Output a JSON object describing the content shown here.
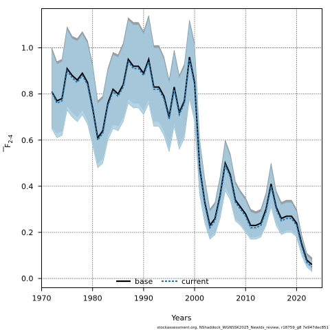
{
  "chart_data": {
    "type": "line",
    "xlabel": "Years",
    "ylabel": "F2-4",
    "xlim": [
      1970,
      2025
    ],
    "ylim": [
      -0.04,
      1.17
    ],
    "grid": true,
    "legend_position": "bottom",
    "x_ticks": [
      1970,
      1980,
      1990,
      2000,
      2010,
      2020
    ],
    "y_ticks": [
      0.0,
      0.2,
      0.4,
      0.6,
      0.8,
      1.0
    ],
    "x_tick_labels": [
      "1970",
      "1980",
      "1990",
      "2000",
      "2010",
      "2020"
    ],
    "y_tick_labels": [
      "0.0",
      "0.2",
      "0.4",
      "0.6",
      "0.8",
      "1.0"
    ],
    "x": [
      1972,
      1973,
      1974,
      1975,
      1976,
      1977,
      1978,
      1979,
      1980,
      1981,
      1982,
      1983,
      1984,
      1985,
      1986,
      1987,
      1988,
      1989,
      1990,
      1991,
      1992,
      1993,
      1994,
      1995,
      1996,
      1997,
      1998,
      1999,
      2000,
      2001,
      2002,
      2003,
      2004,
      2005,
      2006,
      2007,
      2008,
      2009,
      2010,
      2011,
      2012,
      2013,
      2014,
      2015,
      2016,
      2017,
      2018,
      2019,
      2020,
      2021,
      2022,
      2023
    ],
    "series": [
      {
        "name": "base",
        "color": "#000000",
        "line_style": "solid",
        "values": [
          0.81,
          0.77,
          0.78,
          0.91,
          0.88,
          0.86,
          0.89,
          0.85,
          0.74,
          0.61,
          0.64,
          0.76,
          0.82,
          0.8,
          0.84,
          0.95,
          0.92,
          0.92,
          0.89,
          0.95,
          0.83,
          0.83,
          0.79,
          0.7,
          0.83,
          0.72,
          0.77,
          0.96,
          0.85,
          0.48,
          0.33,
          0.23,
          0.26,
          0.36,
          0.5,
          0.45,
          0.34,
          0.31,
          0.28,
          0.23,
          0.23,
          0.24,
          0.3,
          0.41,
          0.31,
          0.26,
          0.27,
          0.27,
          0.24,
          0.15,
          0.08,
          0.06
        ],
        "upper": [
          1.0,
          0.94,
          0.95,
          1.09,
          1.05,
          1.04,
          1.07,
          1.03,
          0.93,
          0.77,
          0.79,
          0.91,
          0.98,
          0.97,
          1.02,
          1.13,
          1.11,
          1.11,
          1.07,
          1.14,
          1.01,
          1.01,
          0.96,
          0.86,
          0.99,
          0.88,
          0.93,
          1.12,
          1.02,
          0.6,
          0.43,
          0.3,
          0.33,
          0.44,
          0.6,
          0.54,
          0.42,
          0.38,
          0.35,
          0.3,
          0.29,
          0.3,
          0.37,
          0.5,
          0.38,
          0.33,
          0.34,
          0.34,
          0.3,
          0.19,
          0.11,
          0.09
        ],
        "lower": [
          0.66,
          0.63,
          0.64,
          0.75,
          0.72,
          0.7,
          0.73,
          0.69,
          0.6,
          0.5,
          0.52,
          0.62,
          0.67,
          0.66,
          0.7,
          0.78,
          0.76,
          0.76,
          0.73,
          0.78,
          0.68,
          0.68,
          0.64,
          0.57,
          0.68,
          0.58,
          0.63,
          0.8,
          0.7,
          0.38,
          0.26,
          0.18,
          0.2,
          0.28,
          0.4,
          0.36,
          0.26,
          0.24,
          0.21,
          0.18,
          0.18,
          0.19,
          0.24,
          0.33,
          0.25,
          0.2,
          0.21,
          0.21,
          0.19,
          0.11,
          0.06,
          0.04
        ]
      },
      {
        "name": "current",
        "color": "#1f78b4",
        "line_style": "dashed",
        "values": [
          0.81,
          0.76,
          0.77,
          0.9,
          0.87,
          0.85,
          0.88,
          0.84,
          0.73,
          0.6,
          0.63,
          0.75,
          0.81,
          0.79,
          0.83,
          0.94,
          0.91,
          0.91,
          0.88,
          0.94,
          0.82,
          0.82,
          0.78,
          0.69,
          0.82,
          0.71,
          0.76,
          0.95,
          0.84,
          0.47,
          0.32,
          0.22,
          0.25,
          0.35,
          0.49,
          0.44,
          0.33,
          0.3,
          0.27,
          0.22,
          0.22,
          0.23,
          0.29,
          0.4,
          0.3,
          0.25,
          0.26,
          0.26,
          0.23,
          0.14,
          0.07,
          0.05
        ],
        "upper": [
          0.99,
          0.93,
          0.94,
          1.08,
          1.04,
          1.03,
          1.06,
          1.02,
          0.92,
          0.76,
          0.78,
          0.9,
          0.97,
          0.96,
          1.01,
          1.12,
          1.1,
          1.1,
          1.06,
          1.13,
          1.0,
          1.0,
          0.95,
          0.85,
          0.98,
          0.87,
          0.92,
          1.11,
          1.01,
          0.59,
          0.42,
          0.29,
          0.32,
          0.43,
          0.59,
          0.53,
          0.41,
          0.37,
          0.34,
          0.29,
          0.28,
          0.29,
          0.36,
          0.49,
          0.37,
          0.32,
          0.33,
          0.33,
          0.29,
          0.18,
          0.1,
          0.08
        ],
        "lower": [
          0.65,
          0.61,
          0.62,
          0.73,
          0.7,
          0.68,
          0.71,
          0.67,
          0.58,
          0.48,
          0.5,
          0.6,
          0.65,
          0.64,
          0.68,
          0.76,
          0.74,
          0.74,
          0.71,
          0.76,
          0.66,
          0.66,
          0.62,
          0.55,
          0.66,
          0.56,
          0.61,
          0.78,
          0.68,
          0.36,
          0.24,
          0.17,
          0.19,
          0.26,
          0.38,
          0.34,
          0.25,
          0.23,
          0.2,
          0.17,
          0.17,
          0.18,
          0.23,
          0.31,
          0.23,
          0.19,
          0.2,
          0.2,
          0.18,
          0.1,
          0.05,
          0.03
        ]
      }
    ],
    "band_colors": {
      "base": "#9e9e9e",
      "current": "#a6cee3",
      "overlap": "#9cc3d8"
    },
    "footer": "stockassessment.org, NShaddock_WGNSSK2025_Newlds_review, r18759_g8 7e947dec851"
  }
}
